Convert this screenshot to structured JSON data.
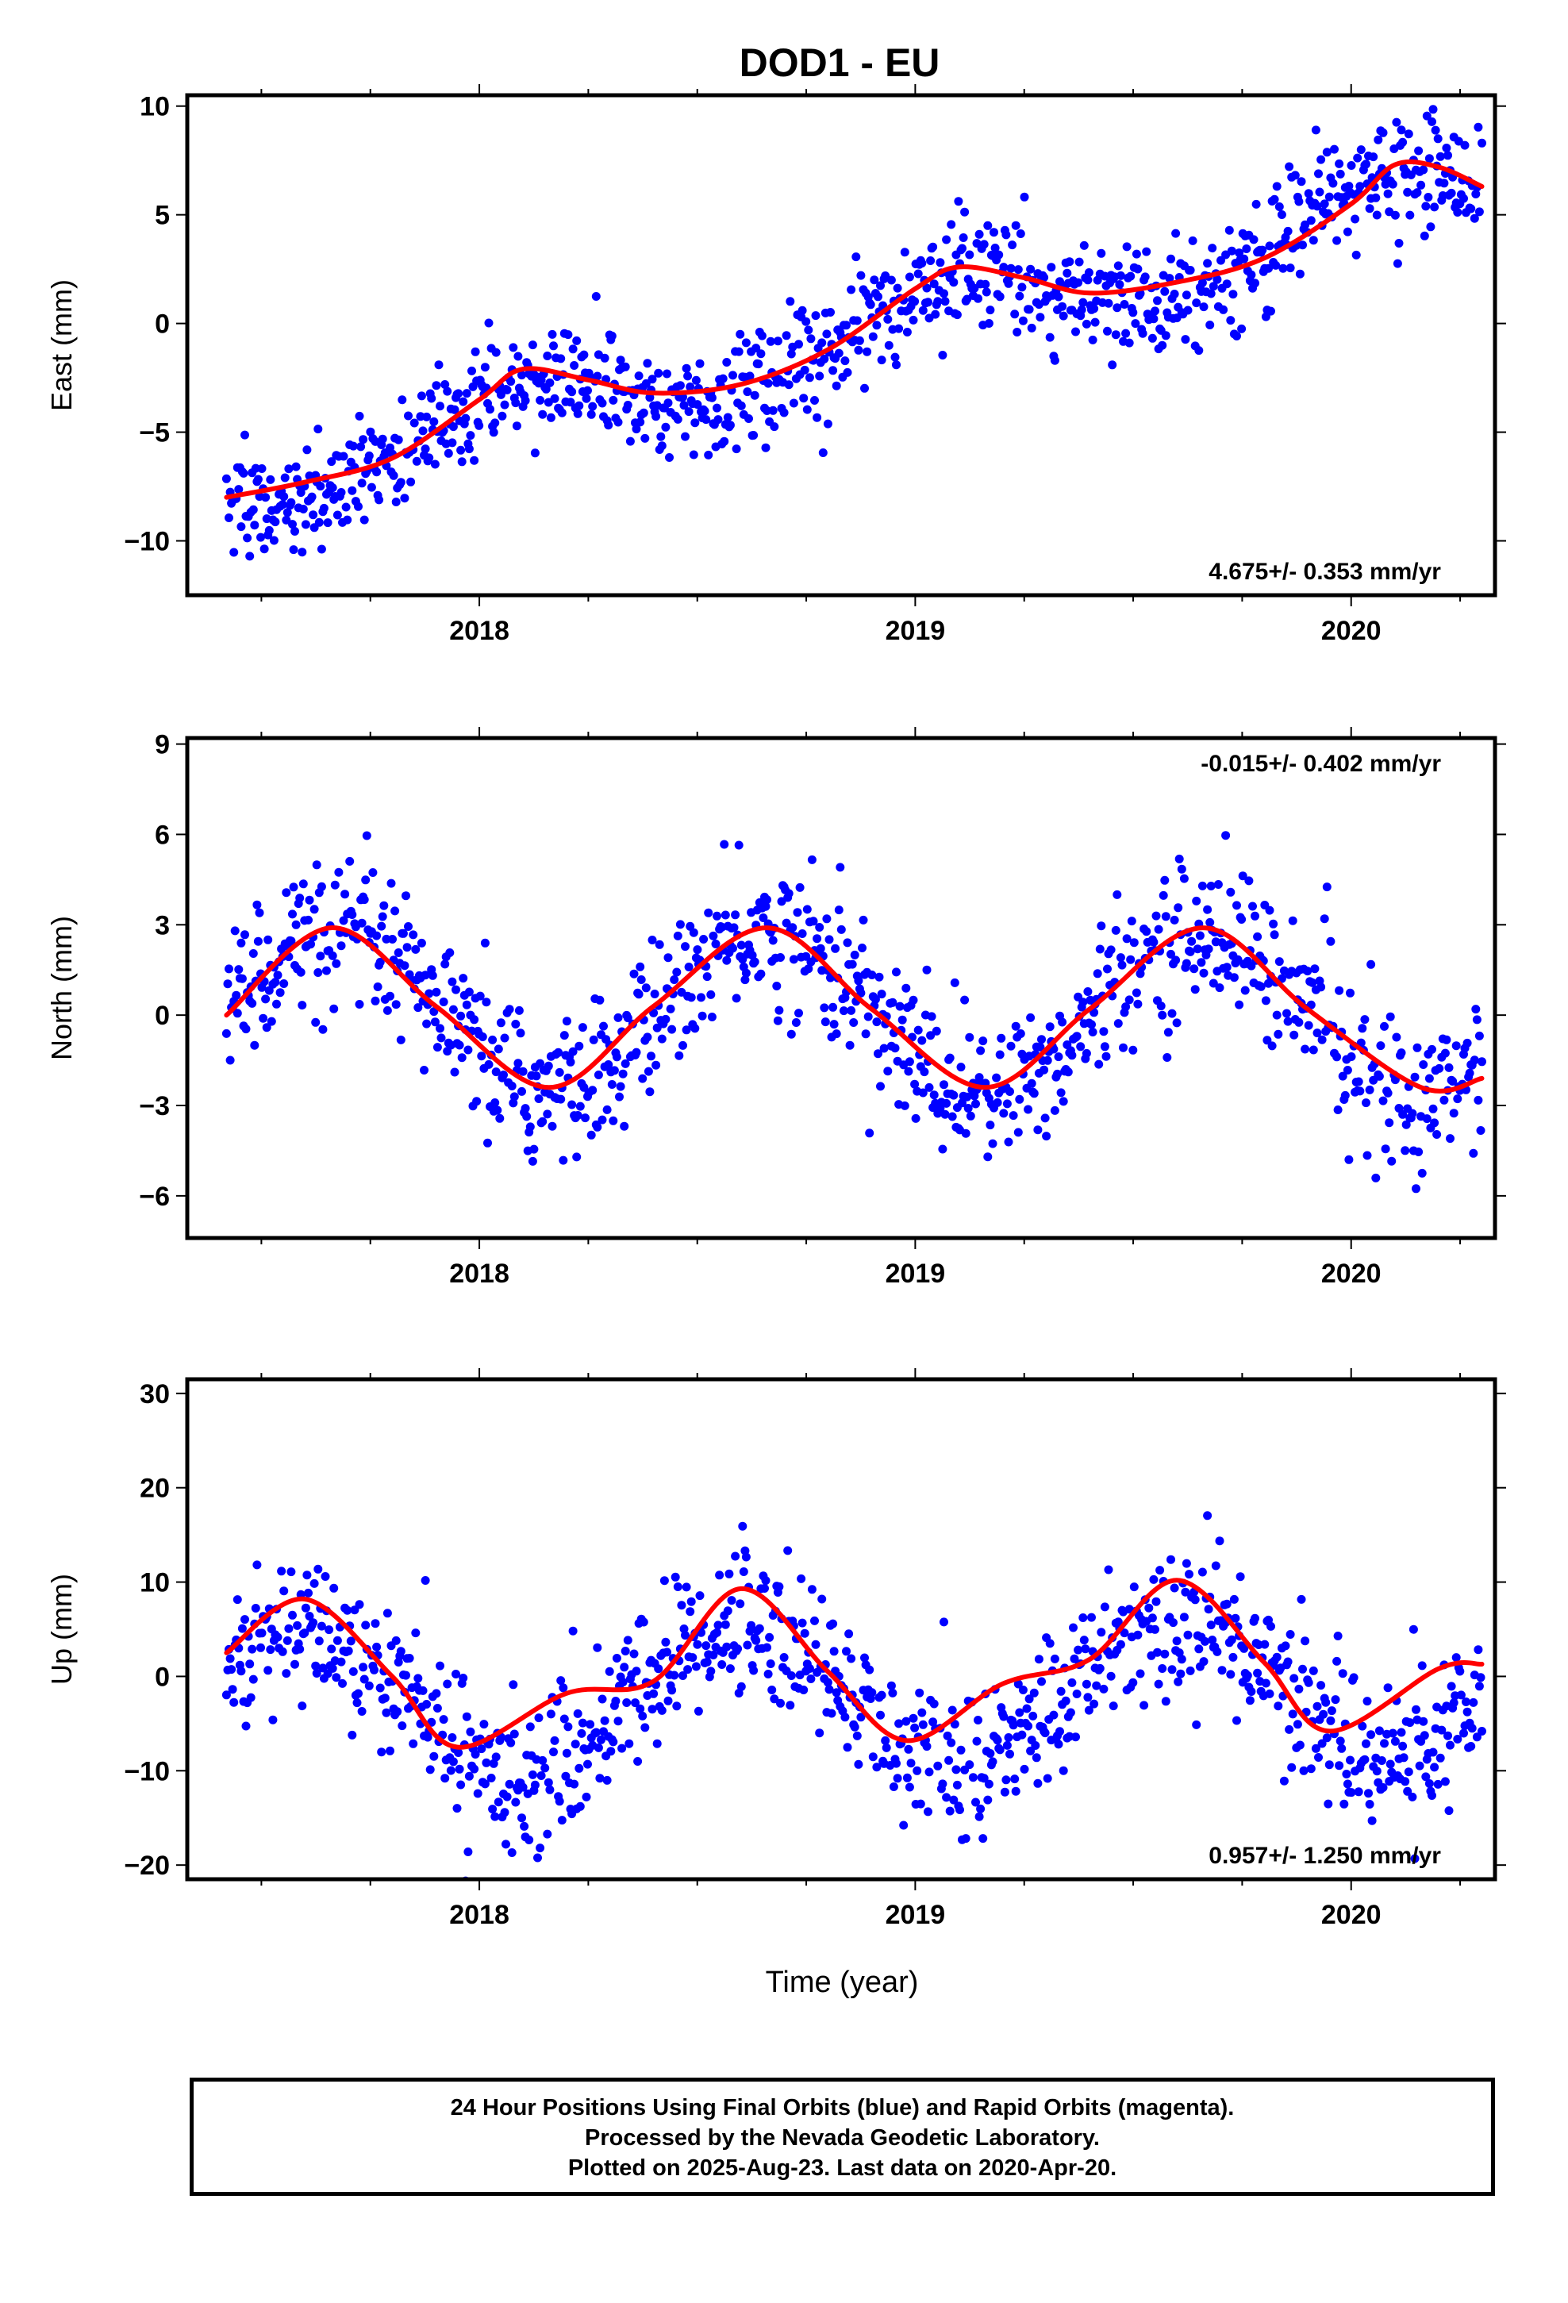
{
  "title": "DOD1 - EU",
  "xlabel": "Time (year)",
  "footer": {
    "line1": "24 Hour Positions Using Final Orbits (blue) and Rapid Orbits (magenta).",
    "line2": "Processed by the Nevada Geodetic Laboratory.",
    "line3": "Plotted on 2025-Aug-23. Last data on 2020-Apr-20."
  },
  "colors": {
    "points": "#0000ff",
    "fit": "#ff0000",
    "axes": "#000000"
  },
  "chart_data": [
    {
      "type": "scatter",
      "ylabel": "East (mm)",
      "rate_label": "4.675+/- 0.353 mm/yr",
      "rate_position": "bottom-right",
      "xlim": [
        2017.33,
        2020.33
      ],
      "ylim": [
        -12.5,
        10.5
      ],
      "yticks": [
        -10,
        -5,
        0,
        5,
        10
      ],
      "xticks": [
        2018,
        2019,
        2020
      ],
      "xticklabels": [
        "2018",
        "2019",
        "2020"
      ],
      "model": {
        "x0": 2017.42,
        "y0": -8.0,
        "rate": 4.675,
        "annual_amp": 1.6,
        "phase_peak": 2018.1
      },
      "scatter_sd": 1.3,
      "series": [
        {
          "role": "daily positions",
          "x_range": [
            2017.42,
            2020.3
          ],
          "y_center": "model",
          "count": 1030
        },
        {
          "role": "model fit",
          "x": [
            2017.42,
            2017.6,
            2017.8,
            2018.0,
            2018.1,
            2018.25,
            2018.4,
            2018.6,
            2018.8,
            2019.0,
            2019.1,
            2019.25,
            2019.4,
            2019.6,
            2019.8,
            2020.0,
            2020.1,
            2020.2,
            2020.3
          ],
          "y": [
            -8.0,
            -7.3,
            -6.2,
            -3.5,
            -2.1,
            -2.6,
            -3.2,
            -2.8,
            -1.2,
            1.6,
            2.6,
            2.1,
            1.4,
            1.9,
            3.0,
            5.5,
            7.3,
            7.2,
            6.3
          ]
        }
      ]
    },
    {
      "type": "scatter",
      "ylabel": "North (mm)",
      "rate_label": "-0.015+/- 0.402 mm/yr",
      "rate_position": "top-right",
      "xlim": [
        2017.33,
        2020.33
      ],
      "ylim": [
        -7.4,
        9.2
      ],
      "yticks": [
        -6,
        -3,
        0,
        3,
        6,
        9
      ],
      "xticks": [
        2018,
        2019,
        2020
      ],
      "xticklabels": [
        "2018",
        "2019",
        "2020"
      ],
      "model": {
        "x0": 2017.42,
        "y0": 0.25,
        "rate": -0.015,
        "annual_amp": 2.65,
        "phase_peak": 2017.66
      },
      "scatter_sd": 1.25,
      "series": [
        {
          "role": "daily positions",
          "x_range": [
            2017.42,
            2020.3
          ],
          "y_center": "model",
          "count": 1030
        },
        {
          "role": "model fit",
          "x": [
            2017.42,
            2017.66,
            2017.9,
            2018.16,
            2018.4,
            2018.66,
            2018.9,
            2019.16,
            2019.4,
            2019.66,
            2019.9,
            2020.16,
            2020.3
          ],
          "y": [
            0.0,
            2.9,
            0.3,
            -2.4,
            0.3,
            2.9,
            0.2,
            -2.4,
            0.2,
            2.9,
            0.2,
            -2.4,
            -2.1
          ]
        }
      ]
    },
    {
      "type": "scatter",
      "ylabel": "Up (mm)",
      "rate_label": "0.957+/- 1.250 mm/yr",
      "rate_position": "bottom-right",
      "xlim": [
        2017.33,
        2020.33
      ],
      "ylim": [
        -21.5,
        31.5
      ],
      "yticks": [
        -20,
        -10,
        0,
        10,
        20,
        30
      ],
      "xticks": [
        2018,
        2019,
        2020
      ],
      "xticklabels": [
        "2018",
        "2019",
        "2020"
      ],
      "model": {
        "x0": 2017.42,
        "y0": 0.0,
        "rate": 0.957,
        "annual_amp": 7.8,
        "phase_peak": 2017.6
      },
      "scatter_sd": 4.0,
      "series": [
        {
          "role": "daily positions",
          "x_range": [
            2017.42,
            2020.3
          ],
          "y_center": "model",
          "count": 1030
        },
        {
          "role": "model fit",
          "x": [
            2017.42,
            2017.6,
            2017.8,
            2017.95,
            2018.2,
            2018.4,
            2018.6,
            2018.8,
            2018.98,
            2019.2,
            2019.4,
            2019.6,
            2019.8,
            2019.95,
            2020.2,
            2020.3
          ],
          "y": [
            2.5,
            8.2,
            0.0,
            -7.5,
            -1.8,
            -0.5,
            9.3,
            0.5,
            -6.8,
            -0.8,
            1.8,
            10.2,
            1.5,
            -5.8,
            0.8,
            1.3
          ]
        }
      ]
    }
  ]
}
